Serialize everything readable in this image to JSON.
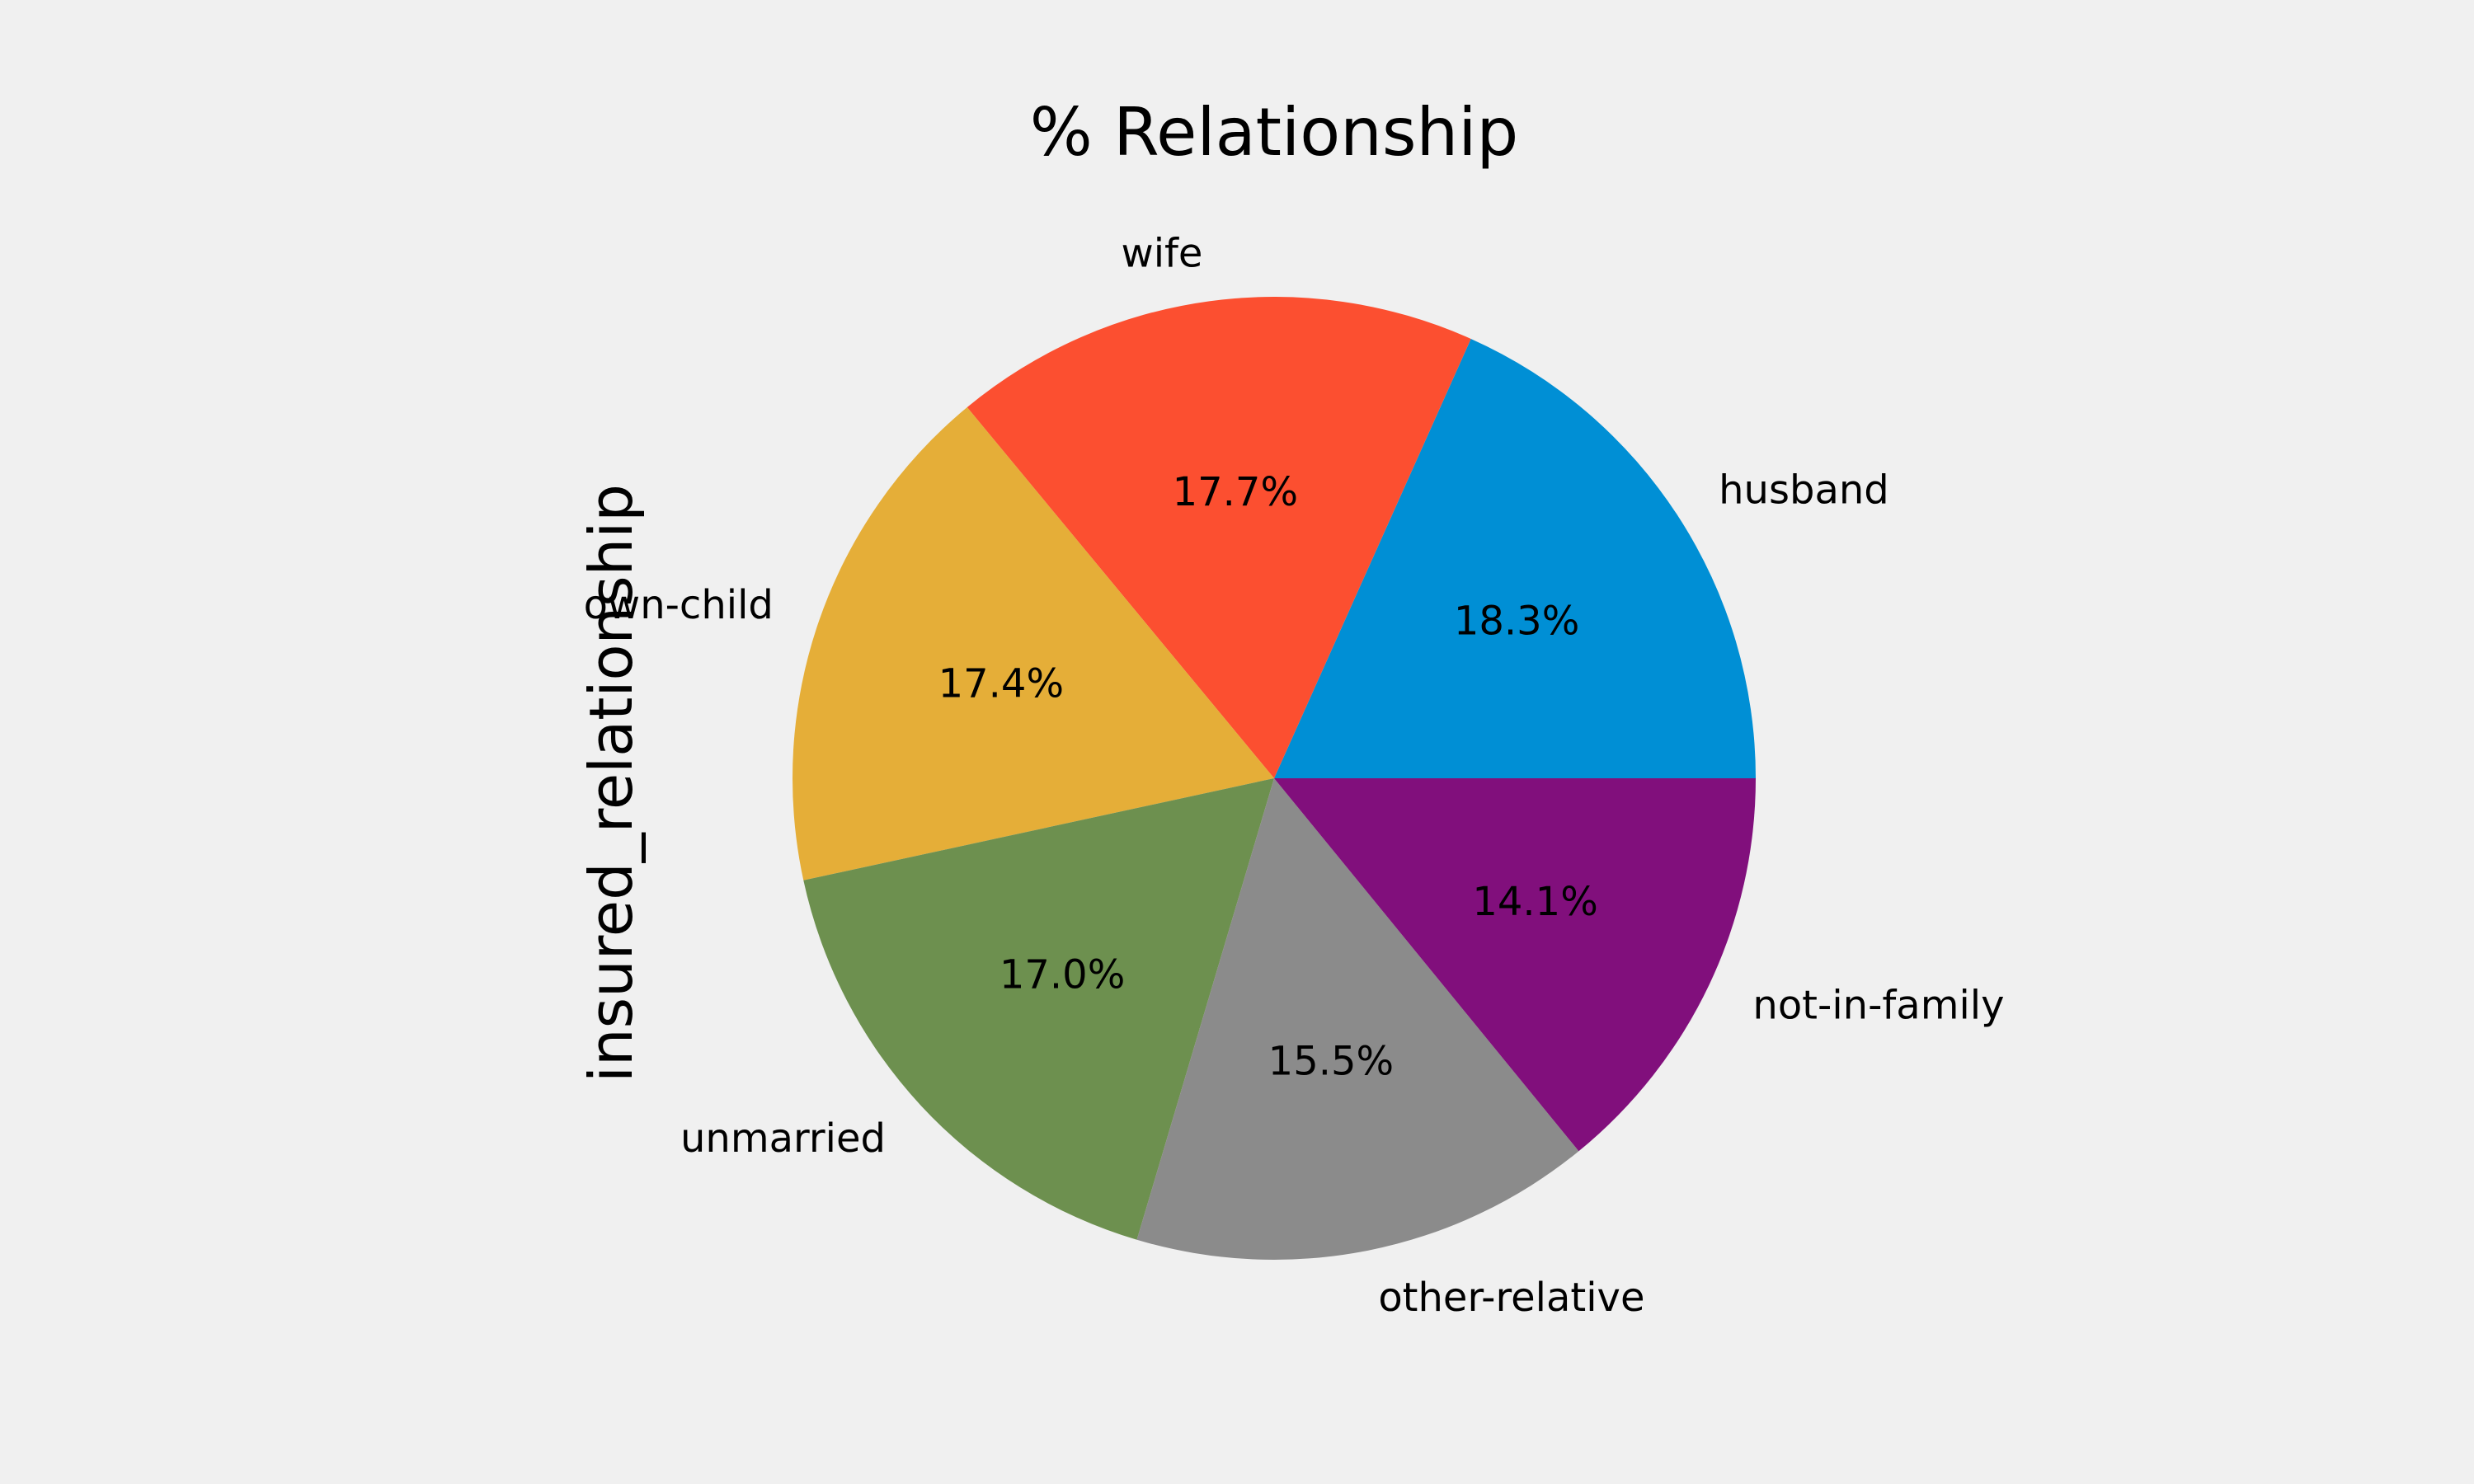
{
  "chart_data": {
    "type": "pie",
    "title": "% Relationship",
    "ylabel": "insured_relationship",
    "categories": [
      "husband",
      "wife",
      "own-child",
      "unmarried",
      "other-relative",
      "not-in-family"
    ],
    "values": [
      18.3,
      17.7,
      17.4,
      17.0,
      15.5,
      14.1
    ],
    "value_labels": [
      "18.3%",
      "17.7%",
      "17.4%",
      "17.0%",
      "15.5%",
      "14.1%"
    ],
    "colors": [
      "#008fd5",
      "#fc4f30",
      "#e5ae38",
      "#6d904f",
      "#8b8b8b",
      "#810f7c"
    ],
    "start_angle": 0,
    "direction": "counterclockwise",
    "legend": "none"
  }
}
